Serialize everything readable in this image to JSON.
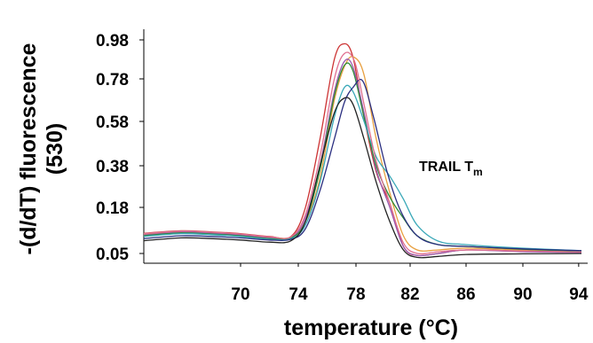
{
  "chart_data": {
    "type": "line",
    "title": "",
    "xlabel": "temperature (°C)",
    "ylabel_line1": "-(d/dT) fluorescence",
    "ylabel_line2": "(530)",
    "annotation": {
      "main": "TRAIL T",
      "sub": "m"
    },
    "x_ticks": [
      70,
      74,
      78,
      82,
      86,
      90,
      94
    ],
    "y_ticks": [
      0.05,
      0.18,
      0.38,
      0.58,
      0.78,
      0.98
    ],
    "y_tick_labels": [
      "0.05",
      "0.18",
      "0.38",
      "0.58",
      "0.78",
      "0.98"
    ],
    "xlim": [
      63.5,
      94.2
    ],
    "ylim": [
      0.0,
      1.06
    ],
    "grid": false,
    "legend": "none",
    "series": [
      {
        "color": "#cc3333",
        "values": [
          [
            63.5,
            0.107
          ],
          [
            66,
            0.114
          ],
          [
            68,
            0.111
          ],
          [
            70,
            0.106
          ],
          [
            72,
            0.098
          ],
          [
            73.5,
            0.098
          ],
          [
            74.5,
            0.18
          ],
          [
            75.5,
            0.5
          ],
          [
            76.5,
            0.88
          ],
          [
            77.2,
            0.96
          ],
          [
            77.8,
            0.89
          ],
          [
            78.5,
            0.63
          ],
          [
            79.5,
            0.35
          ],
          [
            80.5,
            0.2
          ],
          [
            81.5,
            0.07
          ],
          [
            82.5,
            0.04
          ],
          [
            84,
            0.05
          ],
          [
            86,
            0.06
          ],
          [
            90,
            0.057
          ],
          [
            94.2,
            0.054
          ]
        ]
      },
      {
        "color": "#e8a040",
        "values": [
          [
            63.5,
            0.104
          ],
          [
            66,
            0.112
          ],
          [
            68,
            0.109
          ],
          [
            70,
            0.104
          ],
          [
            72,
            0.096
          ],
          [
            73.5,
            0.096
          ],
          [
            74.5,
            0.14
          ],
          [
            75.5,
            0.32
          ],
          [
            76.5,
            0.68
          ],
          [
            77.3,
            0.86
          ],
          [
            77.9,
            0.89
          ],
          [
            78.6,
            0.8
          ],
          [
            79.5,
            0.5
          ],
          [
            80.5,
            0.25
          ],
          [
            81.5,
            0.1
          ],
          [
            82.5,
            0.06
          ],
          [
            84,
            0.06
          ],
          [
            86,
            0.065
          ],
          [
            90,
            0.06
          ],
          [
            94.2,
            0.056
          ]
        ]
      },
      {
        "color": "#9a5ab0",
        "values": [
          [
            63.5,
            0.102
          ],
          [
            66,
            0.11
          ],
          [
            68,
            0.107
          ],
          [
            70,
            0.102
          ],
          [
            72,
            0.094
          ],
          [
            73.5,
            0.094
          ],
          [
            74.5,
            0.15
          ],
          [
            75.5,
            0.38
          ],
          [
            76.5,
            0.72
          ],
          [
            77.2,
            0.87
          ],
          [
            77.8,
            0.84
          ],
          [
            78.6,
            0.62
          ],
          [
            79.5,
            0.36
          ],
          [
            80.5,
            0.18
          ],
          [
            81.5,
            0.07
          ],
          [
            82.5,
            0.04
          ],
          [
            84,
            0.05
          ],
          [
            86,
            0.06
          ],
          [
            90,
            0.055
          ],
          [
            94.2,
            0.053
          ]
        ]
      },
      {
        "color": "#2e8b3a",
        "values": [
          [
            63.5,
            0.1
          ],
          [
            66,
            0.108
          ],
          [
            68,
            0.105
          ],
          [
            70,
            0.1
          ],
          [
            72,
            0.092
          ],
          [
            73.5,
            0.094
          ],
          [
            74.5,
            0.14
          ],
          [
            75.5,
            0.36
          ],
          [
            76.5,
            0.7
          ],
          [
            77.2,
            0.85
          ],
          [
            77.8,
            0.82
          ],
          [
            78.6,
            0.6
          ],
          [
            79.5,
            0.38
          ],
          [
            80.5,
            0.23
          ],
          [
            81.5,
            0.15
          ],
          [
            82.5,
            0.1
          ],
          [
            84,
            0.075
          ],
          [
            86,
            0.07
          ],
          [
            90,
            0.062
          ],
          [
            94.2,
            0.057
          ]
        ]
      },
      {
        "color": "#3aa8b8",
        "values": [
          [
            63.5,
            0.098
          ],
          [
            66,
            0.106
          ],
          [
            68,
            0.103
          ],
          [
            70,
            0.098
          ],
          [
            72,
            0.09
          ],
          [
            73.5,
            0.092
          ],
          [
            74.5,
            0.13
          ],
          [
            75.5,
            0.3
          ],
          [
            76.5,
            0.6
          ],
          [
            77.2,
            0.74
          ],
          [
            77.8,
            0.72
          ],
          [
            78.6,
            0.58
          ],
          [
            79.5,
            0.42
          ],
          [
            80.5,
            0.33
          ],
          [
            81.5,
            0.22
          ],
          [
            82.5,
            0.13
          ],
          [
            84,
            0.085
          ],
          [
            86,
            0.075
          ],
          [
            90,
            0.065
          ],
          [
            94.2,
            0.058
          ]
        ]
      },
      {
        "color": "#2a2e80",
        "values": [
          [
            63.5,
            0.092
          ],
          [
            66,
            0.1
          ],
          [
            68,
            0.098
          ],
          [
            70,
            0.094
          ],
          [
            72,
            0.088
          ],
          [
            73.5,
            0.09
          ],
          [
            74.5,
            0.12
          ],
          [
            75.5,
            0.26
          ],
          [
            76.5,
            0.5
          ],
          [
            77.2,
            0.67
          ],
          [
            77.8,
            0.74
          ],
          [
            78.5,
            0.77
          ],
          [
            79.3,
            0.6
          ],
          [
            80.3,
            0.35
          ],
          [
            81.3,
            0.17
          ],
          [
            82.5,
            0.1
          ],
          [
            84,
            0.075
          ],
          [
            86,
            0.07
          ],
          [
            90,
            0.063
          ],
          [
            94.2,
            0.058
          ]
        ]
      },
      {
        "color": "#e07090",
        "values": [
          [
            63.5,
            0.106
          ],
          [
            66,
            0.113
          ],
          [
            68,
            0.11
          ],
          [
            70,
            0.105
          ],
          [
            72,
            0.097
          ],
          [
            73.5,
            0.097
          ],
          [
            74.5,
            0.16
          ],
          [
            75.5,
            0.42
          ],
          [
            76.5,
            0.78
          ],
          [
            77.2,
            0.91
          ],
          [
            77.9,
            0.87
          ],
          [
            78.6,
            0.66
          ],
          [
            79.5,
            0.4
          ],
          [
            80.5,
            0.2
          ],
          [
            81.5,
            0.08
          ],
          [
            82.5,
            0.05
          ],
          [
            84,
            0.055
          ],
          [
            86,
            0.06
          ],
          [
            90,
            0.057
          ],
          [
            94.2,
            0.054
          ]
        ]
      },
      {
        "color": "#222222",
        "values": [
          [
            63.5,
            0.086
          ],
          [
            66,
            0.094
          ],
          [
            68,
            0.092
          ],
          [
            70,
            0.088
          ],
          [
            72,
            0.082
          ],
          [
            73.5,
            0.086
          ],
          [
            74.5,
            0.14
          ],
          [
            75.5,
            0.38
          ],
          [
            76.5,
            0.62
          ],
          [
            77.2,
            0.69
          ],
          [
            77.8,
            0.66
          ],
          [
            78.6,
            0.5
          ],
          [
            79.5,
            0.3
          ],
          [
            80.5,
            0.14
          ],
          [
            81.5,
            0.06
          ],
          [
            82.5,
            0.03
          ],
          [
            84,
            0.035
          ],
          [
            86,
            0.045
          ],
          [
            90,
            0.048
          ],
          [
            94.2,
            0.05
          ]
        ]
      }
    ]
  }
}
